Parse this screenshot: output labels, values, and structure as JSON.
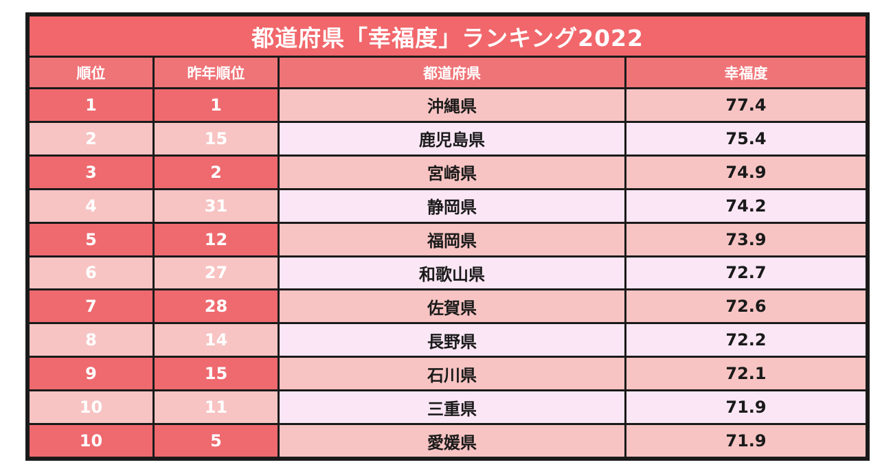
{
  "title": "都道府県「幸福度」ランキング2022",
  "headers": {
    "rank": "順位",
    "prev_rank": "昨年順位",
    "prefecture": "都道府県",
    "score": "幸福度"
  },
  "colors": {
    "title_bg": "#f1676b",
    "header_bg": "#ef7478",
    "dark_rank_bg": "#ee6a6f",
    "light_rank_bg": "#f7c4c3",
    "dark_data_bg": "#f7c4c3",
    "light_data_bg": "#fbe6f5",
    "border": "#1a1a1a"
  },
  "rows": [
    {
      "rank": "1",
      "prev_rank": "1",
      "prefecture": "沖縄県",
      "score": "77.4"
    },
    {
      "rank": "2",
      "prev_rank": "15",
      "prefecture": "鹿児島県",
      "score": "75.4"
    },
    {
      "rank": "3",
      "prev_rank": "2",
      "prefecture": "宮崎県",
      "score": "74.9"
    },
    {
      "rank": "4",
      "prev_rank": "31",
      "prefecture": "静岡県",
      "score": "74.2"
    },
    {
      "rank": "5",
      "prev_rank": "12",
      "prefecture": "福岡県",
      "score": "73.9"
    },
    {
      "rank": "6",
      "prev_rank": "27",
      "prefecture": "和歌山県",
      "score": "72.7"
    },
    {
      "rank": "7",
      "prev_rank": "28",
      "prefecture": "佐賀県",
      "score": "72.6"
    },
    {
      "rank": "8",
      "prev_rank": "14",
      "prefecture": "長野県",
      "score": "72.2"
    },
    {
      "rank": "9",
      "prev_rank": "15",
      "prefecture": "石川県",
      "score": "72.1"
    },
    {
      "rank": "10",
      "prev_rank": "11",
      "prefecture": "三重県",
      "score": "71.9"
    },
    {
      "rank": "10",
      "prev_rank": "5",
      "prefecture": "愛媛県",
      "score": "71.9"
    }
  ]
}
